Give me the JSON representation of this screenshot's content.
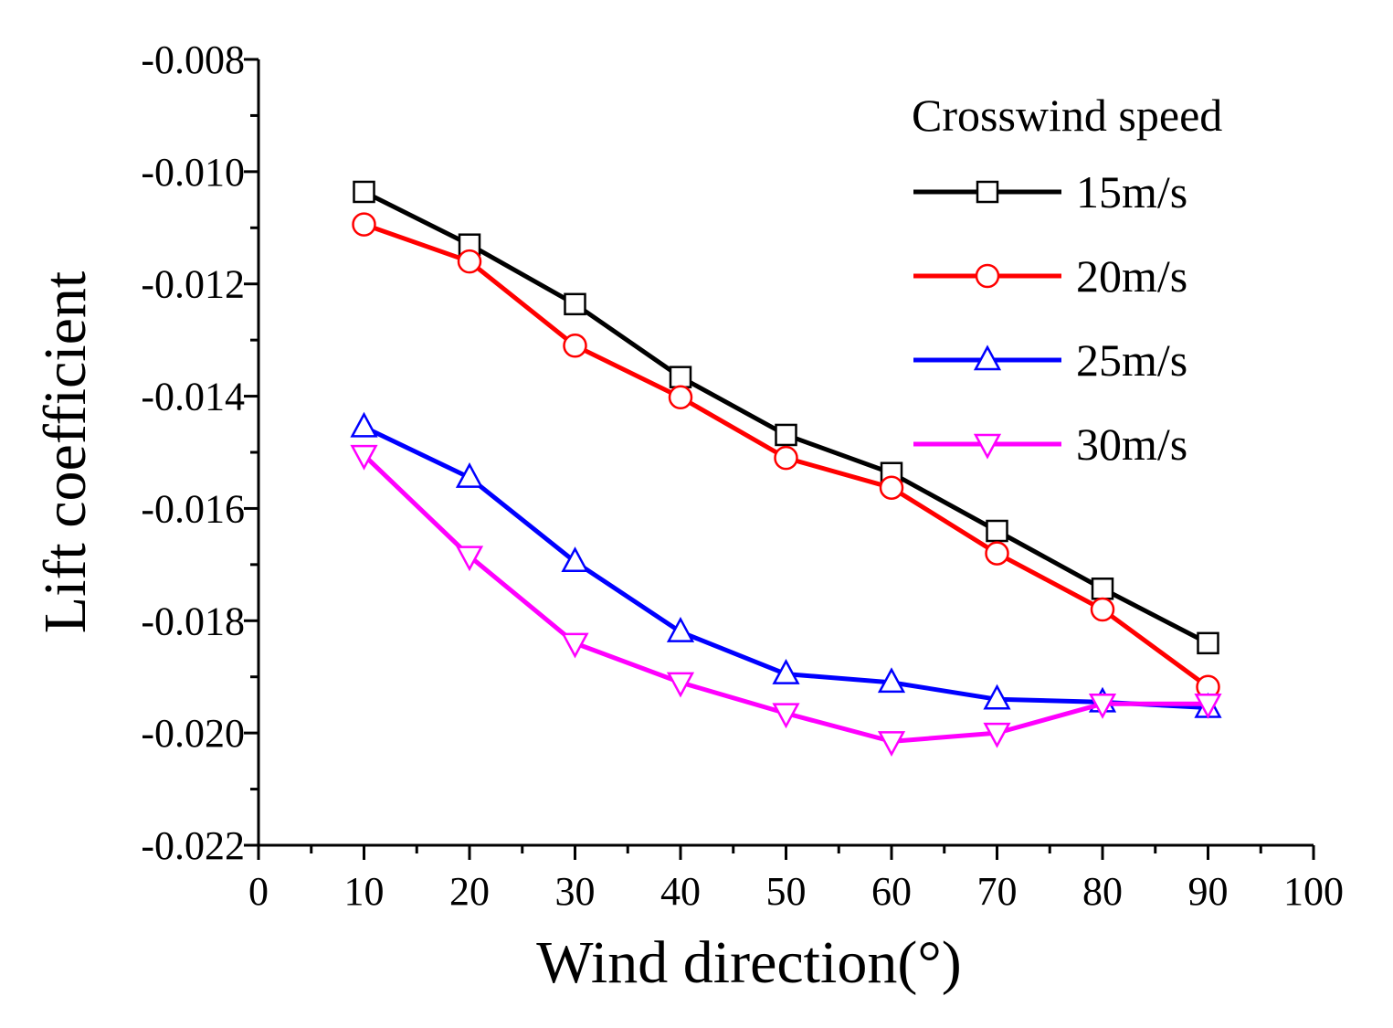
{
  "chart_data": {
    "type": "line",
    "xlabel": "Wind direction(°)",
    "ylabel": "Lift coefficient",
    "xlim": [
      0,
      100
    ],
    "ylim": [
      -0.022,
      -0.008
    ],
    "xticks": [
      0,
      10,
      20,
      30,
      40,
      50,
      60,
      70,
      80,
      90,
      100
    ],
    "xtick_labels": [
      "0",
      "10",
      "20",
      "30",
      "40",
      "50",
      "60",
      "70",
      "80",
      "90",
      "100"
    ],
    "yticks": [
      -0.008,
      -0.01,
      -0.012,
      -0.014,
      -0.016,
      -0.018,
      -0.02,
      -0.022
    ],
    "ytick_labels": [
      "-0.008",
      "-0.010",
      "-0.012",
      "-0.014",
      "-0.016",
      "-0.018",
      "-0.020",
      "-0.022"
    ],
    "x": [
      10,
      20,
      30,
      40,
      50,
      60,
      70,
      80,
      90
    ],
    "legend_title": "Crosswind speed",
    "legend_position": "top-right",
    "series": [
      {
        "name": "15m/s",
        "color": "#000000",
        "marker": "square",
        "values": [
          -0.01036,
          -0.0113,
          -0.01236,
          -0.01366,
          -0.01469,
          -0.01537,
          -0.0164,
          -0.01743,
          -0.0184
        ]
      },
      {
        "name": "20m/s",
        "color": "#ff0000",
        "marker": "circle",
        "values": [
          -0.01094,
          -0.0116,
          -0.0131,
          -0.01402,
          -0.0151,
          -0.01563,
          -0.0168,
          -0.0178,
          -0.01918
        ]
      },
      {
        "name": "25m/s",
        "color": "#0000ff",
        "marker": "triangle-up",
        "values": [
          -0.01455,
          -0.01545,
          -0.01695,
          -0.0182,
          -0.01895,
          -0.0191,
          -0.0194,
          -0.01945,
          -0.01955
        ]
      },
      {
        "name": "30m/s",
        "color": "#ff00ff",
        "marker": "triangle-down",
        "values": [
          -0.01505,
          -0.01685,
          -0.0184,
          -0.0191,
          -0.01965,
          -0.02015,
          -0.02,
          -0.01948,
          -0.01948
        ]
      }
    ]
  }
}
